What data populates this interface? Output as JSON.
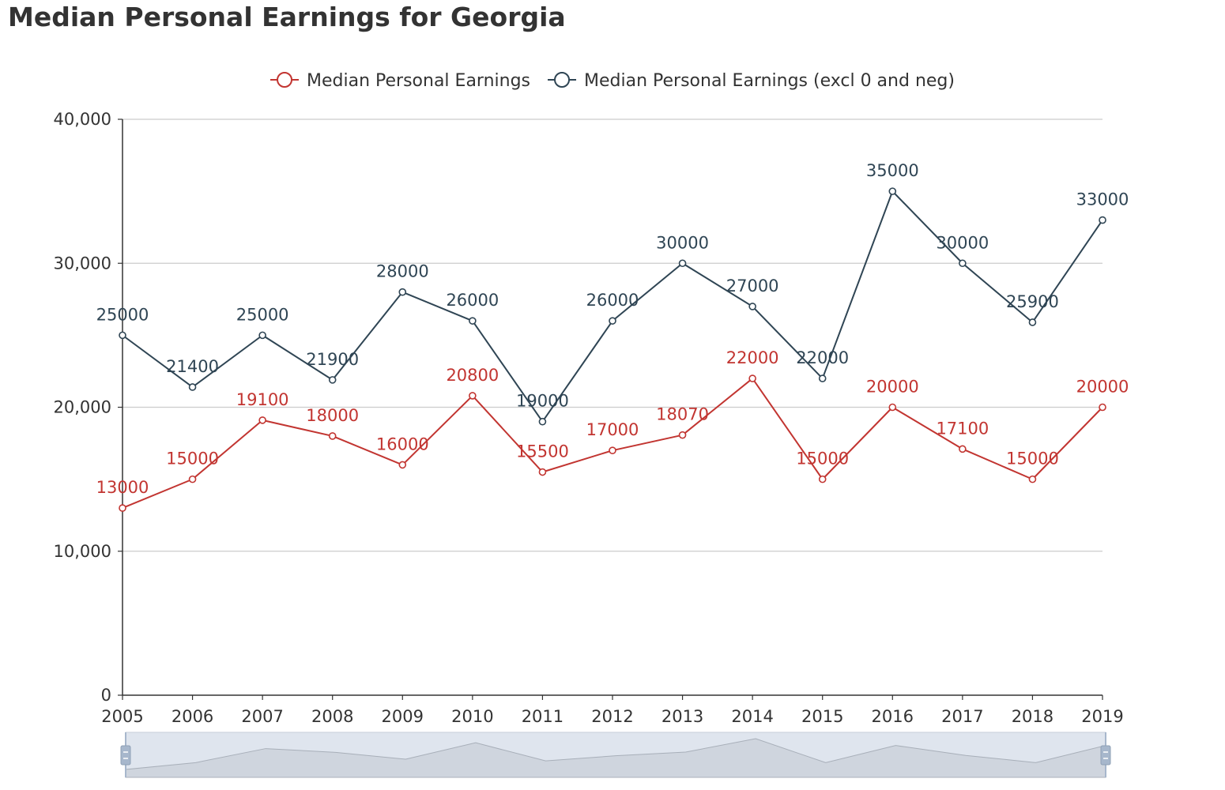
{
  "title": "Median Personal Earnings for Georgia",
  "chart_data": {
    "type": "line",
    "title": "Median Personal Earnings for Georgia",
    "x": [
      "2005",
      "2006",
      "2007",
      "2008",
      "2009",
      "2010",
      "2011",
      "2012",
      "2013",
      "2014",
      "2015",
      "2016",
      "2017",
      "2018",
      "2019"
    ],
    "series": [
      {
        "name": "Median Personal Earnings",
        "color": "#c23531",
        "values": [
          13000,
          15000,
          19100,
          18000,
          16000,
          20800,
          15500,
          17000,
          18070,
          22000,
          15000,
          20000,
          17100,
          15000,
          20000
        ]
      },
      {
        "name": "Median Personal Earnings (excl 0 and neg)",
        "color": "#2f4554",
        "values": [
          25000,
          21400,
          25000,
          21900,
          28000,
          26000,
          19000,
          26000,
          30000,
          27000,
          22000,
          35000,
          30000,
          25900,
          33000
        ]
      }
    ],
    "ylim": [
      0,
      40000
    ],
    "yticks": [
      0,
      10000,
      20000,
      30000,
      40000
    ],
    "ytick_labels": [
      "0",
      "10,000",
      "20,000",
      "30,000",
      "40,000"
    ],
    "grid": true,
    "legend_position": "top-center",
    "data_zoom": true
  }
}
